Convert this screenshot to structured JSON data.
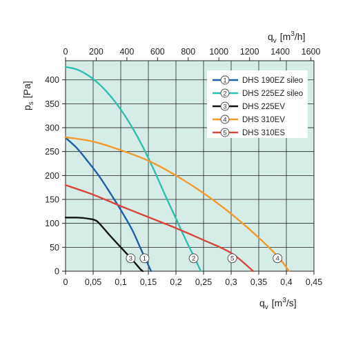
{
  "chart_data": {
    "type": "line",
    "x_axis_bottom": {
      "label_main": "q",
      "label_sub": "v",
      "label_unit": "[m",
      "label_sup": "3",
      "label_unit_end": "/s]",
      "range": [
        0,
        0.45
      ],
      "ticks": [
        0,
        0.05,
        0.1,
        0.15,
        0.2,
        0.25,
        0.3,
        0.35,
        0.4,
        0.45
      ],
      "tick_labels": [
        "0",
        "0,05",
        "0,1",
        "0,15",
        "0,2",
        "0,25",
        "0,3",
        "0,35",
        "0,4",
        "0,45"
      ]
    },
    "x_axis_top": {
      "label_main": "q",
      "label_sub": "v",
      "label_unit": "[m",
      "label_sup": "3",
      "label_unit_end": "/h]",
      "range": [
        0,
        1620
      ],
      "ticks": [
        0,
        200,
        400,
        600,
        800,
        1000,
        1200,
        1400,
        1600
      ],
      "tick_labels": [
        "0",
        "200",
        "400",
        "600",
        "800",
        "1000",
        "1200",
        "1400",
        "1600"
      ]
    },
    "y_axis": {
      "label_main": "p",
      "label_sub": "s",
      "label_unit": "[Pa]",
      "range": [
        0,
        440
      ],
      "ticks": [
        0,
        50,
        100,
        150,
        200,
        250,
        300,
        350,
        400
      ],
      "tick_labels": [
        "0",
        "50",
        "100",
        "150",
        "200",
        "250",
        "300",
        "350",
        "400"
      ]
    },
    "grid": true,
    "legend_position": "top-right",
    "series": [
      {
        "name": "DHS 190EZ sileo",
        "marker": "1",
        "color": "#1f5fa8",
        "points": [
          [
            0,
            279
          ],
          [
            0.02,
            258
          ],
          [
            0.04,
            230
          ],
          [
            0.06,
            200
          ],
          [
            0.08,
            165
          ],
          [
            0.1,
            128
          ],
          [
            0.12,
            88
          ],
          [
            0.135,
            50
          ],
          [
            0.145,
            25
          ],
          [
            0.155,
            0
          ]
        ],
        "label_at": [
          0.143,
          27
        ]
      },
      {
        "name": "DHS 225EZ sileo",
        "marker": "2",
        "color": "#2ebfb0",
        "points": [
          [
            0,
            427
          ],
          [
            0.02,
            422
          ],
          [
            0.04,
            410
          ],
          [
            0.06,
            392
          ],
          [
            0.08,
            368
          ],
          [
            0.1,
            338
          ],
          [
            0.12,
            302
          ],
          [
            0.14,
            260
          ],
          [
            0.16,
            212
          ],
          [
            0.18,
            160
          ],
          [
            0.2,
            110
          ],
          [
            0.22,
            60
          ],
          [
            0.235,
            25
          ],
          [
            0.245,
            0
          ]
        ],
        "label_at": [
          0.232,
          27
        ]
      },
      {
        "name": "DHS 225EV",
        "marker": "3",
        "color": "#111111",
        "points": [
          [
            0,
            112
          ],
          [
            0.02,
            112
          ],
          [
            0.04,
            110
          ],
          [
            0.055,
            106
          ],
          [
            0.065,
            95
          ],
          [
            0.08,
            75
          ],
          [
            0.1,
            50
          ],
          [
            0.12,
            25
          ],
          [
            0.135,
            5
          ],
          [
            0.14,
            0
          ]
        ],
        "label_at": [
          0.118,
          27
        ]
      },
      {
        "name": "DHS 310EV",
        "marker": "4",
        "color": "#f29a2e",
        "points": [
          [
            0,
            280
          ],
          [
            0.05,
            271
          ],
          [
            0.1,
            253
          ],
          [
            0.15,
            231
          ],
          [
            0.2,
            200
          ],
          [
            0.25,
            163
          ],
          [
            0.3,
            120
          ],
          [
            0.35,
            70
          ],
          [
            0.385,
            30
          ],
          [
            0.405,
            0
          ]
        ],
        "label_at": [
          0.384,
          27
        ]
      },
      {
        "name": "DHS 310ES",
        "marker": "5",
        "color": "#d9463e",
        "points": [
          [
            0,
            180
          ],
          [
            0.05,
            160
          ],
          [
            0.1,
            136
          ],
          [
            0.15,
            113
          ],
          [
            0.2,
            90
          ],
          [
            0.25,
            65
          ],
          [
            0.3,
            38
          ],
          [
            0.34,
            0
          ]
        ],
        "label_at": [
          0.302,
          27
        ]
      }
    ]
  },
  "colors": {
    "plot_background": "#d5ece7",
    "grid": "#222222"
  }
}
